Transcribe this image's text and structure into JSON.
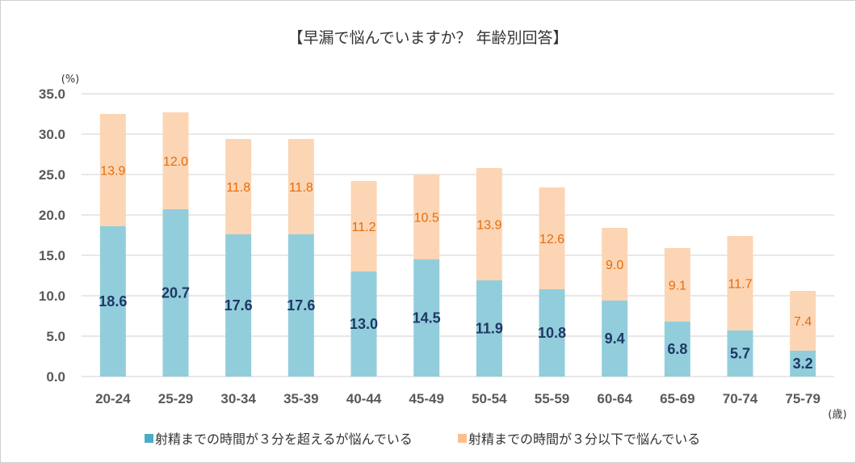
{
  "chart_data": {
    "type": "bar",
    "stacked": true,
    "title": "【早漏で悩んでいますか？ 年齢別回答】",
    "ylabel": "(%)",
    "xlabel": "(歳)",
    "ylim": [
      0,
      35
    ],
    "yticks": [
      "0.0",
      "5.0",
      "10.0",
      "15.0",
      "20.0",
      "25.0",
      "30.0",
      "35.0"
    ],
    "grid": true,
    "legend_position": "bottom",
    "categories": [
      "20-24",
      "25-29",
      "30-34",
      "35-39",
      "40-44",
      "45-49",
      "50-54",
      "55-59",
      "60-64",
      "65-69",
      "70-74",
      "75-79"
    ],
    "series": [
      {
        "name": "射精までの時間が３分を超えるが悩んでいる",
        "color": "#92cddc",
        "legend_color": "#4bacc6",
        "values": [
          18.6,
          20.7,
          17.6,
          17.6,
          13.0,
          14.5,
          11.9,
          10.8,
          9.4,
          6.8,
          5.7,
          3.2
        ]
      },
      {
        "name": "射精までの時間が３分以下で悩んでいる",
        "color": "#fcd5b5",
        "legend_color": "#fac090",
        "values": [
          13.9,
          12.0,
          11.8,
          11.8,
          11.2,
          10.5,
          13.9,
          12.6,
          9.0,
          9.1,
          11.7,
          7.4
        ]
      }
    ]
  }
}
